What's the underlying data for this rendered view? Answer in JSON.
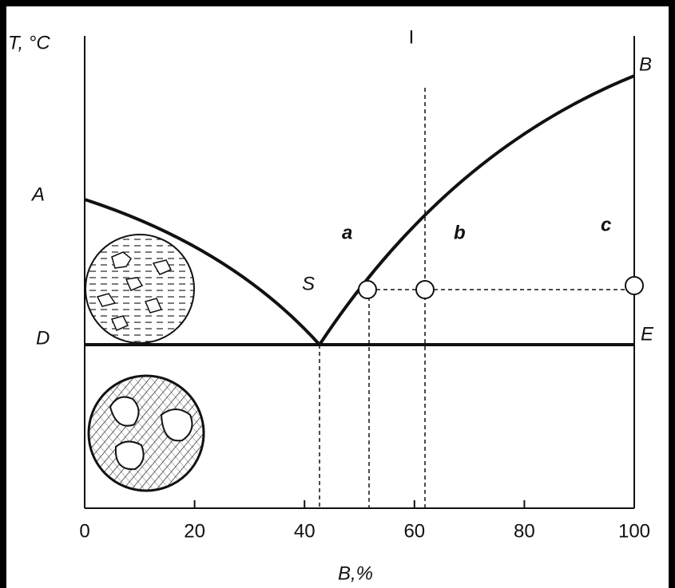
{
  "axis": {
    "y_label": "T, °C",
    "x_label": "B,%",
    "xlim": [
      0,
      100
    ],
    "xticks": [
      0,
      20,
      40,
      60,
      80,
      100
    ]
  },
  "points": {
    "A": "A",
    "B": "B",
    "D": "D",
    "E": "E",
    "S": "S"
  },
  "regions": {
    "a": "a",
    "b": "b",
    "c": "c"
  },
  "section_label": "I"
}
